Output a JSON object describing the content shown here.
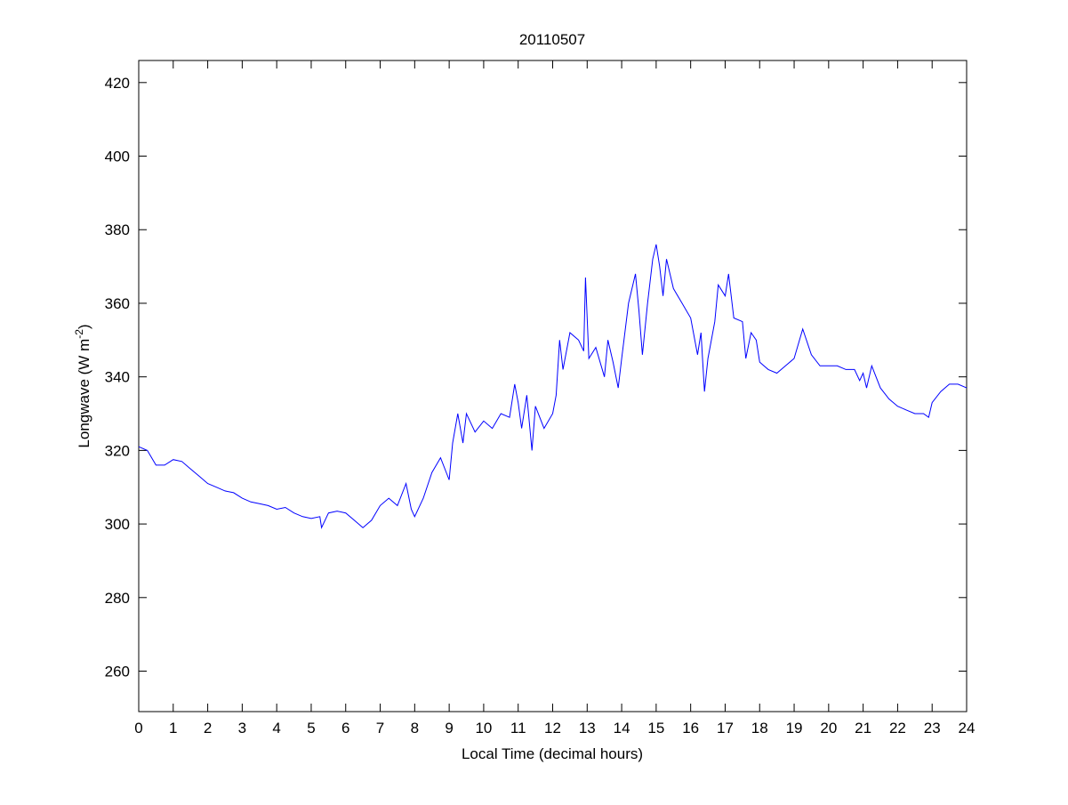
{
  "chart_data": {
    "type": "line",
    "title": "20110507",
    "xlabel": "Local Time (decimal hours)",
    "ylabel_main": "Longwave (W m",
    "ylabel_sup": "-2",
    "ylabel_close": ")",
    "xlim": [
      0,
      24
    ],
    "ylim": [
      249,
      426
    ],
    "xticks": [
      0,
      1,
      2,
      3,
      4,
      5,
      6,
      7,
      8,
      9,
      10,
      11,
      12,
      13,
      14,
      15,
      16,
      17,
      18,
      19,
      20,
      21,
      22,
      23,
      24
    ],
    "yticks": [
      260,
      280,
      300,
      320,
      340,
      360,
      380,
      400,
      420
    ],
    "grid": false,
    "series": [
      {
        "name": "Longwave",
        "color": "#0000ff",
        "x": [
          0,
          0.25,
          0.5,
          0.75,
          1.0,
          1.25,
          1.5,
          1.75,
          2.0,
          2.25,
          2.5,
          2.75,
          3.0,
          3.25,
          3.5,
          3.75,
          4.0,
          4.25,
          4.5,
          4.75,
          5.0,
          5.25,
          5.3,
          5.5,
          5.75,
          6.0,
          6.25,
          6.5,
          6.75,
          7.0,
          7.25,
          7.5,
          7.75,
          7.9,
          8.0,
          8.25,
          8.5,
          8.75,
          9.0,
          9.1,
          9.25,
          9.4,
          9.5,
          9.75,
          10.0,
          10.25,
          10.5,
          10.75,
          10.9,
          11.0,
          11.1,
          11.25,
          11.4,
          11.5,
          11.75,
          12.0,
          12.1,
          12.2,
          12.3,
          12.5,
          12.75,
          12.9,
          12.95,
          13.05,
          13.25,
          13.5,
          13.6,
          13.75,
          13.9,
          14.0,
          14.2,
          14.4,
          14.5,
          14.6,
          14.75,
          14.9,
          15.0,
          15.1,
          15.2,
          15.3,
          15.5,
          15.75,
          16.0,
          16.2,
          16.3,
          16.4,
          16.5,
          16.7,
          16.8,
          17.0,
          17.1,
          17.25,
          17.5,
          17.6,
          17.75,
          17.9,
          18.0,
          18.25,
          18.5,
          18.75,
          19.0,
          19.25,
          19.5,
          19.75,
          20.0,
          20.25,
          20.5,
          20.75,
          20.9,
          21.0,
          21.1,
          21.25,
          21.5,
          21.75,
          22.0,
          22.25,
          22.5,
          22.75,
          22.9,
          23.0,
          23.25,
          23.5,
          23.75,
          24.0
        ],
        "y": [
          321,
          320,
          316,
          316,
          317.5,
          317,
          315,
          313,
          311,
          310,
          309,
          308.5,
          307,
          306,
          305.5,
          305,
          304,
          304.5,
          303,
          302,
          301.5,
          302,
          299,
          303,
          303.5,
          303,
          301,
          299,
          301,
          305,
          307,
          305,
          311,
          304,
          302,
          307,
          314,
          318,
          312,
          322,
          330,
          322,
          330,
          325,
          328,
          326,
          330,
          329,
          338,
          333,
          326,
          335,
          320,
          332,
          326,
          330,
          335,
          350,
          342,
          352,
          350,
          347,
          367,
          345,
          348,
          340,
          350,
          344,
          337,
          345,
          360,
          368,
          358,
          346,
          360,
          372,
          376,
          370,
          362,
          372,
          364,
          360,
          356,
          346,
          352,
          336,
          345,
          355,
          365,
          362,
          368,
          356,
          355,
          345,
          352,
          350,
          344,
          342,
          341,
          343,
          345,
          353,
          346,
          343,
          343,
          343,
          342,
          342,
          339,
          341,
          337,
          343,
          337,
          334,
          332,
          331,
          330,
          330,
          329,
          333,
          336,
          338,
          338,
          337
        ]
      }
    ]
  }
}
